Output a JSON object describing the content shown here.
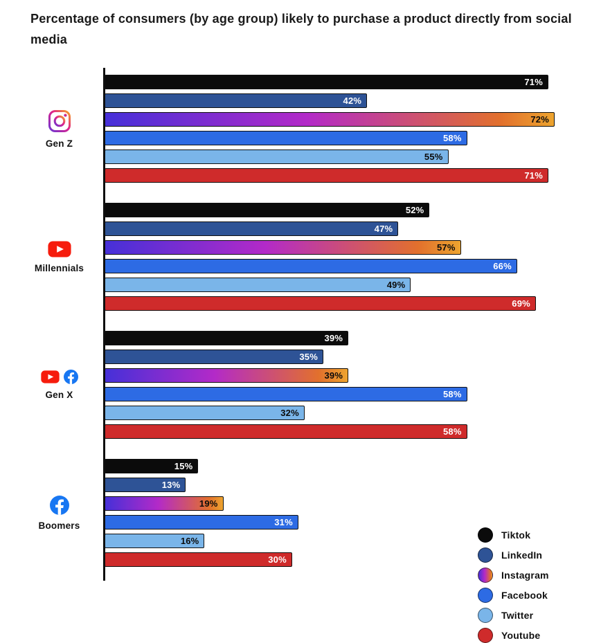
{
  "title": "Percentage of consumers (by age group) likely to purchase a product directly from social media",
  "chart_data": {
    "type": "bar",
    "orientation": "horizontal",
    "value_suffix": "%",
    "xlim": [
      0,
      72
    ],
    "grid": false,
    "legend_position": "bottom-right",
    "categories": [
      "Gen Z",
      "Millennials",
      "Gen X",
      "Boomers"
    ],
    "group_icons": [
      [
        "instagram"
      ],
      [
        "youtube"
      ],
      [
        "youtube",
        "facebook"
      ],
      [
        "facebook"
      ]
    ],
    "series": [
      {
        "name": "Tiktok",
        "color": "#0b0b0b",
        "label_color": "#ffffff",
        "values": [
          71,
          52,
          39,
          15
        ]
      },
      {
        "name": "LinkedIn",
        "color": "#2e5396",
        "label_color": "#ffffff",
        "values": [
          42,
          47,
          35,
          13
        ]
      },
      {
        "name": "Instagram",
        "color": "linear-gradient(90deg,#4630d8 0%,#b32ac8 45%,#e2702d 88%,#eda42f 100%)",
        "label_color": "#0b0b0b",
        "values": [
          72,
          57,
          39,
          19
        ]
      },
      {
        "name": "Facebook",
        "color": "#2d6be4",
        "label_color": "#ffffff",
        "values": [
          58,
          66,
          58,
          31
        ]
      },
      {
        "name": "Twitter",
        "color": "#7ab5e9",
        "label_color": "#0b0b0b",
        "values": [
          55,
          49,
          32,
          16
        ]
      },
      {
        "name": "Youtube",
        "color": "#cf2b2b",
        "label_color": "#ffffff",
        "values": [
          71,
          69,
          58,
          30
        ]
      }
    ]
  },
  "icons": {
    "instagram_gradient": [
      "#6a35d4",
      "#e0218a",
      "#f5a623"
    ],
    "youtube_red": "#f61c0d",
    "facebook_blue": "#1877f2"
  }
}
